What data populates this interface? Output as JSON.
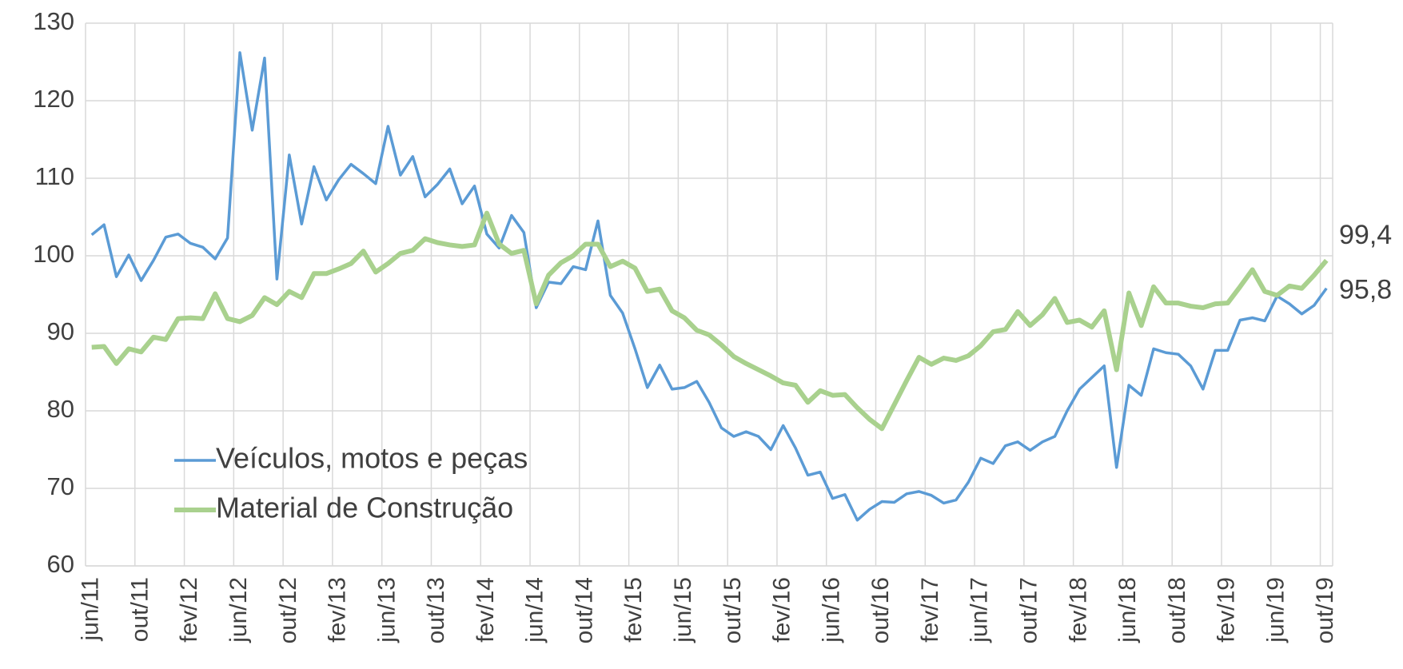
{
  "chart_data": {
    "type": "line",
    "categories": [
      "jun/11",
      null,
      null,
      null,
      "out/11",
      null,
      null,
      null,
      "fev/12",
      null,
      null,
      null,
      "jun/12",
      null,
      null,
      null,
      "out/12",
      null,
      null,
      null,
      "fev/13",
      null,
      null,
      null,
      "jun/13",
      null,
      null,
      null,
      "out/13",
      null,
      null,
      null,
      "fev/14",
      null,
      null,
      null,
      "jun/14",
      null,
      null,
      null,
      "out/14",
      null,
      null,
      null,
      "fev/15",
      null,
      null,
      null,
      "jun/15",
      null,
      null,
      null,
      "out/15",
      null,
      null,
      null,
      "fev/16",
      null,
      null,
      null,
      "jun/16",
      null,
      null,
      null,
      "out/16",
      null,
      null,
      null,
      "fev/17",
      null,
      null,
      null,
      "jun/17",
      null,
      null,
      null,
      "out/17",
      null,
      null,
      null,
      "fev/18",
      null,
      null,
      null,
      "jun/18",
      null,
      null,
      null,
      "out/18",
      null,
      null,
      null,
      "fev/19",
      null,
      null,
      null,
      "jun/19",
      null,
      null,
      null,
      "out/19"
    ],
    "series": [
      {
        "name": "Veículos, motos e peças",
        "color": "#5b9bd5",
        "width": 3.5,
        "values": [
          102.7,
          104,
          97.3,
          100.1,
          96.8,
          99.4,
          102.4,
          102.8,
          101.6,
          101.1,
          99.6,
          102.3,
          126.2,
          116.2,
          125.5,
          97,
          113,
          104.1,
          111.5,
          107.2,
          109.8,
          111.8,
          110.6,
          109.3,
          116.7,
          110.4,
          112.8,
          107.6,
          109.2,
          111.2,
          106.7,
          109,
          102.8,
          101,
          105.2,
          103,
          93.3,
          96.6,
          96.4,
          98.6,
          98.2,
          104.5,
          94.9,
          92.6,
          88,
          83,
          85.9,
          82.8,
          83,
          83.8,
          81.1,
          77.8,
          76.7,
          77.3,
          76.7,
          75,
          78.1,
          75.2,
          71.7,
          72.1,
          68.7,
          69.2,
          65.9,
          67.3,
          68.3,
          68.2,
          69.3,
          69.6,
          69.1,
          68.1,
          68.5,
          70.8,
          73.9,
          73.2,
          75.5,
          76,
          74.9,
          76,
          76.7,
          80,
          82.8,
          84.3,
          85.8,
          72.7,
          83.3,
          82,
          88,
          87.5,
          87.3,
          85.8,
          82.8,
          87.8,
          87.8,
          91.7,
          92,
          91.6,
          94.8,
          93.8,
          92.5,
          93.6,
          95.8
        ],
        "value_labels": [
          null,
          null,
          null,
          null,
          null,
          null,
          null,
          null,
          null,
          null,
          null,
          null,
          null,
          null,
          null,
          null,
          null,
          null,
          null,
          null,
          null,
          null,
          null,
          null,
          null,
          null,
          null,
          null,
          null,
          null,
          null,
          null,
          null,
          null,
          null,
          null,
          null,
          null,
          null,
          null,
          null,
          null,
          null,
          null,
          null,
          null,
          null,
          null,
          null,
          null,
          null,
          null,
          null,
          null,
          null,
          null,
          null,
          null,
          null,
          null,
          null,
          null,
          null,
          null,
          null,
          null,
          null,
          null,
          null,
          null,
          null,
          null,
          null,
          null,
          null,
          null,
          null,
          null,
          null,
          null,
          null,
          null,
          null,
          null,
          null,
          null,
          null,
          null,
          null,
          null,
          null,
          null,
          null,
          null,
          null,
          null,
          null,
          null,
          null,
          null,
          "95,8"
        ]
      },
      {
        "name": "Material de Construção",
        "color": "#a9d18e",
        "width": 6,
        "values": [
          88.2,
          88.3,
          86.1,
          88,
          87.6,
          89.5,
          89.2,
          91.9,
          92,
          91.9,
          95.1,
          91.9,
          91.5,
          92.3,
          94.6,
          93.7,
          95.4,
          94.6,
          97.7,
          97.7,
          98.3,
          99,
          100.6,
          97.9,
          99,
          100.3,
          100.7,
          102.2,
          101.7,
          101.4,
          101.2,
          101.4,
          105.5,
          101.5,
          100.3,
          100.7,
          93.8,
          97.5,
          99.1,
          100,
          101.5,
          101.5,
          98.6,
          99.3,
          98.4,
          95.4,
          95.7,
          92.9,
          92,
          90.4,
          89.8,
          88.5,
          87,
          86.1,
          85.3,
          84.5,
          83.6,
          83.3,
          81.1,
          82.6,
          82,
          82.1,
          80.4,
          78.9,
          77.7,
          80.8,
          83.9,
          86.9,
          86,
          86.8,
          86.5,
          87.1,
          88.4,
          90.2,
          90.5,
          92.8,
          91,
          92.4,
          94.5,
          91.4,
          91.7,
          90.8,
          92.9,
          85.3,
          95.2,
          91,
          96,
          93.9,
          93.9,
          93.5,
          93.3,
          93.8,
          93.9,
          96,
          98.2,
          95.4,
          94.9,
          96.1,
          95.8,
          97.5,
          99.4
        ],
        "value_labels": [
          null,
          null,
          null,
          null,
          null,
          null,
          null,
          null,
          null,
          null,
          null,
          null,
          null,
          null,
          null,
          null,
          null,
          null,
          null,
          null,
          null,
          null,
          null,
          null,
          null,
          null,
          null,
          null,
          null,
          null,
          null,
          null,
          null,
          null,
          null,
          null,
          null,
          null,
          null,
          null,
          null,
          null,
          null,
          null,
          null,
          null,
          null,
          null,
          null,
          null,
          null,
          null,
          null,
          null,
          null,
          null,
          null,
          null,
          null,
          null,
          null,
          null,
          null,
          null,
          null,
          null,
          null,
          null,
          null,
          null,
          null,
          null,
          null,
          null,
          null,
          null,
          null,
          null,
          null,
          null,
          null,
          null,
          null,
          null,
          null,
          null,
          null,
          null,
          null,
          null,
          null,
          null,
          null,
          null,
          null,
          null,
          null,
          null,
          null,
          null,
          "99,4"
        ]
      }
    ],
    "ylim": [
      60,
      130
    ],
    "yticks": [
      60,
      70,
      80,
      90,
      100,
      110,
      120,
      130
    ],
    "grid": true,
    "legend": "lower left"
  }
}
